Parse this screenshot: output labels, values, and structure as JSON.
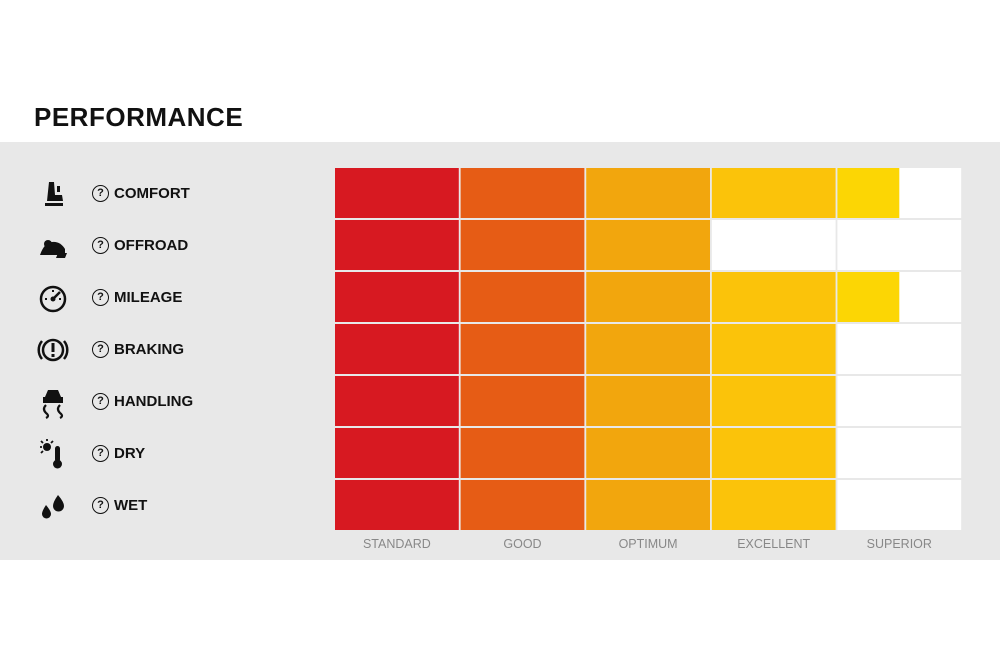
{
  "title": "PERFORMANCE",
  "colors": {
    "levels": [
      "#d71921",
      "#e65c15",
      "#f2a60d",
      "#fbc30a",
      "#fcd604"
    ],
    "empty": "#ffffff",
    "panel": "#e8e8e8",
    "tick_text": "#888888"
  },
  "chart_data": {
    "type": "table",
    "title": "PERFORMANCE",
    "categories": [
      "STANDARD",
      "GOOD",
      "OPTIMUM",
      "EXCELLENT",
      "SUPERIOR"
    ],
    "rows": [
      {
        "label": "COMFORT",
        "icon": "seat-icon",
        "value": 4.5
      },
      {
        "label": "OFFROAD",
        "icon": "offroad-icon",
        "value": 3
      },
      {
        "label": "MILEAGE",
        "icon": "speedometer-icon",
        "value": 4.5
      },
      {
        "label": "BRAKING",
        "icon": "brake-warning-icon",
        "value": 4
      },
      {
        "label": "HANDLING",
        "icon": "skid-car-icon",
        "value": 4
      },
      {
        "label": "DRY",
        "icon": "sun-thermometer-icon",
        "value": 4
      },
      {
        "label": "WET",
        "icon": "water-drops-icon",
        "value": 4
      }
    ],
    "scale": [
      0,
      5
    ]
  }
}
